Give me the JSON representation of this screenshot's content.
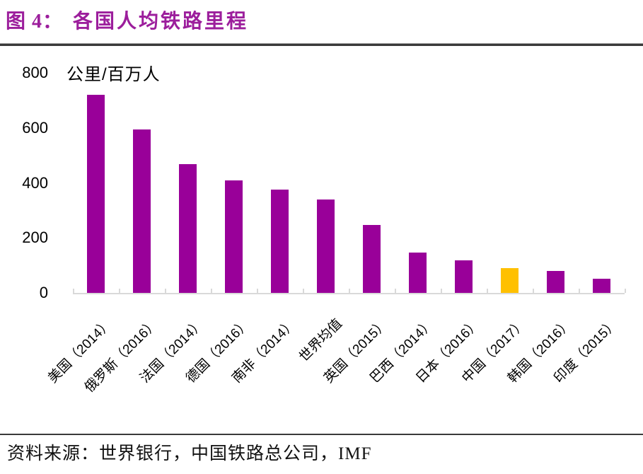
{
  "header": {
    "figure_label": "图 4：",
    "title": "各国人均铁路里程",
    "accent_color": "#9C1E9C"
  },
  "chart_data": {
    "type": "bar",
    "title": "各国人均铁路里程",
    "xlabel": "",
    "ylabel": "公里/百万人",
    "categories": [
      "美国（2014）",
      "俄罗斯（2016）",
      "法国（2014）",
      "德国（2016）",
      "南非（2014）",
      "世界均值",
      "英国（2015）",
      "巴西（2014）",
      "日本（2016）",
      "中国（2017）",
      "韩国（2016）",
      "印度（2015）"
    ],
    "values": [
      720,
      595,
      468,
      410,
      375,
      340,
      247,
      147,
      118,
      90,
      80,
      51
    ],
    "y_ticks": [
      800,
      600,
      400,
      200,
      0
    ],
    "ylim": [
      0,
      800
    ],
    "grid": false,
    "legend": "none",
    "bar_color": "#990099",
    "highlight_color": "#FFC000",
    "highlight_index": 9,
    "axis_color": "#D9D9D9",
    "label_color": "#000000"
  },
  "footer": {
    "source_label": "资料来源：",
    "sources": "世界银行，中国铁路总公司，IMF"
  }
}
